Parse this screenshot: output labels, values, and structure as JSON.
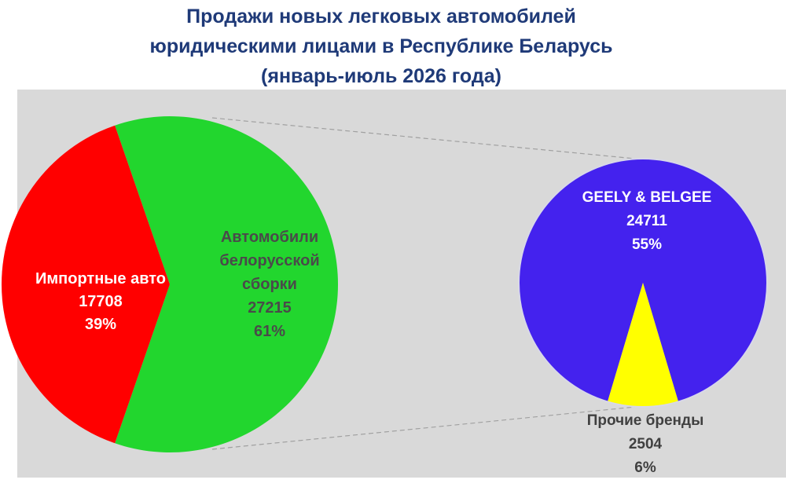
{
  "title": {
    "line1": "Продажи новых легковых автомобилей",
    "line2": "юридическими  лицами в Республике Беларусь",
    "line3": "(январь-июль 2026 года)"
  },
  "chart_data": [
    {
      "type": "pie",
      "slices": [
        {
          "label_lines": [
            "Импортные авто"
          ],
          "value": 17708,
          "value_text": "17708",
          "percent_text": "39%",
          "color": "#ff0000",
          "text_color": "#ffffff"
        },
        {
          "label_lines": [
            "Автомобили",
            "белорусской",
            "сборки"
          ],
          "value": 27215,
          "value_text": "27215",
          "percent_text": "61%",
          "color": "#22d62e",
          "text_color": "#4a4a4a"
        }
      ]
    },
    {
      "type": "pie",
      "breakdown_of": "Автомобили белорусской сборки",
      "slices": [
        {
          "label_lines": [
            "GEELY & BELGEE"
          ],
          "value": 24711,
          "value_text": "24711",
          "percent_text": "55%",
          "color": "#4422ee",
          "text_color": "#ffffff"
        },
        {
          "label_lines": [
            "Прочие бренды"
          ],
          "value": 2504,
          "value_text": "2504",
          "percent_text": "6%",
          "color": "#ffff00",
          "text_color": "#404040"
        }
      ]
    }
  ]
}
